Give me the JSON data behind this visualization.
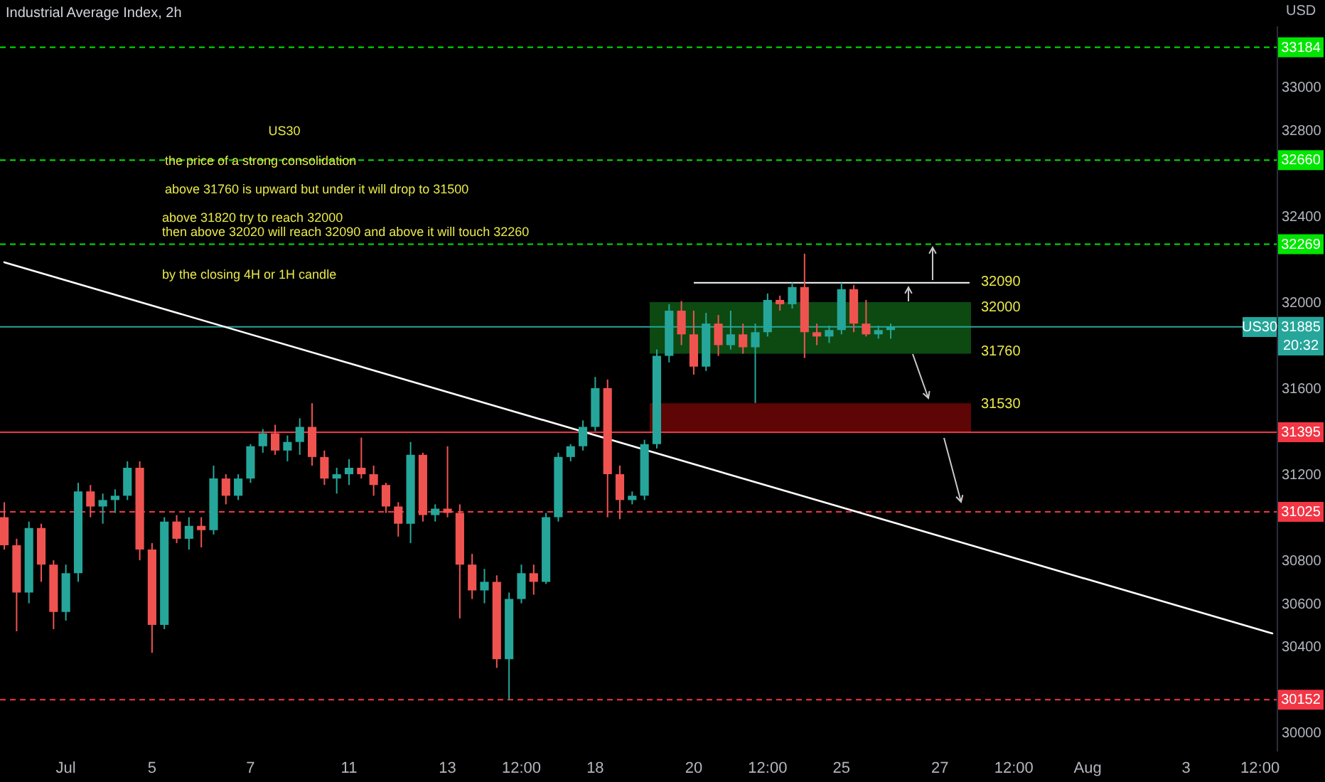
{
  "chart_data": {
    "type": "candlestick",
    "title": "Industrial Average Index, 2h",
    "ylabel": "USD",
    "categories": [
      null,
      null,
      null,
      null,
      null,
      "Jul",
      null,
      null,
      null,
      null,
      null,
      null,
      "5",
      null,
      null,
      null,
      null,
      null,
      null,
      null,
      "7",
      null,
      null,
      null,
      null,
      null,
      null,
      null,
      "11",
      null,
      null,
      null,
      null,
      null,
      null,
      null,
      "13",
      null,
      null,
      null,
      null,
      null,
      "12:00",
      null,
      null,
      null,
      null,
      null,
      "18",
      null,
      null,
      null,
      null,
      null,
      null,
      null,
      "20",
      null,
      null,
      null,
      null,
      null,
      "12:00",
      null,
      null,
      null,
      null,
      null,
      "25",
      null,
      null,
      null,
      null,
      null,
      null,
      null,
      "27",
      null,
      null,
      null,
      null,
      null,
      "12:00",
      null,
      null,
      null,
      null,
      null,
      "Aug",
      null,
      null,
      null,
      null,
      null,
      null,
      null,
      "3",
      null,
      null,
      null,
      null,
      null,
      "12:00",
      null
    ],
    "ohlc": [
      [
        31000,
        31070,
        30850,
        30870
      ],
      [
        30870,
        30900,
        30470,
        30650
      ],
      [
        30650,
        30980,
        30600,
        30950
      ],
      [
        30950,
        30970,
        30700,
        30780
      ],
      [
        30780,
        30800,
        30480,
        30560
      ],
      [
        30560,
        30780,
        30520,
        30740
      ],
      [
        30740,
        31160,
        30700,
        31120
      ],
      [
        31120,
        31150,
        31000,
        31050
      ],
      [
        31050,
        31110,
        30970,
        31080
      ],
      [
        31080,
        31130,
        31020,
        31100
      ],
      [
        31100,
        31260,
        31080,
        31230
      ],
      [
        31230,
        31260,
        30800,
        30850
      ],
      [
        30850,
        30880,
        30370,
        30500
      ],
      [
        30500,
        31000,
        30480,
        30980
      ],
      [
        30980,
        31010,
        30880,
        30900
      ],
      [
        30900,
        31000,
        30850,
        30960
      ],
      [
        30960,
        31000,
        30860,
        30940
      ],
      [
        30940,
        31240,
        30920,
        31180
      ],
      [
        31180,
        31200,
        31060,
        31100
      ],
      [
        31100,
        31200,
        31080,
        31180
      ],
      [
        31180,
        31340,
        31160,
        31330
      ],
      [
        31330,
        31410,
        31300,
        31390
      ],
      [
        31390,
        31430,
        31290,
        31310
      ],
      [
        31310,
        31380,
        31260,
        31350
      ],
      [
        31350,
        31460,
        31290,
        31420
      ],
      [
        31420,
        31530,
        31240,
        31280
      ],
      [
        31280,
        31310,
        31150,
        31180
      ],
      [
        31180,
        31230,
        31110,
        31200
      ],
      [
        31200,
        31270,
        31150,
        31230
      ],
      [
        31230,
        31370,
        31180,
        31200
      ],
      [
        31200,
        31240,
        31100,
        31150
      ],
      [
        31150,
        31160,
        31020,
        31050
      ],
      [
        31050,
        31070,
        30910,
        30970
      ],
      [
        30970,
        31350,
        30880,
        31290
      ],
      [
        31290,
        31300,
        30980,
        31010
      ],
      [
        31010,
        31060,
        30980,
        31040
      ],
      [
        31040,
        31330,
        31000,
        31020
      ],
      [
        31020,
        31060,
        30530,
        30780
      ],
      [
        30780,
        30830,
        30620,
        30660
      ],
      [
        30660,
        30760,
        30600,
        30700
      ],
      [
        30700,
        30730,
        30300,
        30340
      ],
      [
        30340,
        30650,
        30153,
        30620
      ],
      [
        30620,
        30780,
        30600,
        30740
      ],
      [
        30740,
        30780,
        30640,
        30700
      ],
      [
        30700,
        31020,
        30690,
        31000
      ],
      [
        31000,
        31300,
        30980,
        31280
      ],
      [
        31280,
        31340,
        31260,
        31330
      ],
      [
        31330,
        31450,
        31310,
        31420
      ],
      [
        31420,
        31652,
        31400,
        31600
      ],
      [
        31600,
        31640,
        31000,
        31200
      ],
      [
        31200,
        31240,
        30991,
        31080
      ],
      [
        31080,
        31120,
        31060,
        31100
      ],
      [
        31100,
        31360,
        31080,
        31340
      ],
      [
        31340,
        31780,
        31320,
        31750
      ],
      [
        31750,
        31990,
        31720,
        31960
      ],
      [
        31960,
        32005,
        31800,
        31850
      ],
      [
        31850,
        31960,
        31663,
        31700
      ],
      [
        31700,
        31950,
        31680,
        31900
      ],
      [
        31900,
        31940,
        31750,
        31800
      ],
      [
        31800,
        31960,
        31780,
        31850
      ],
      [
        31850,
        31900,
        31760,
        31790
      ],
      [
        31790,
        31900,
        31531,
        31860
      ],
      [
        31860,
        32040,
        31840,
        32010
      ],
      [
        32010,
        32030,
        31960,
        31990
      ],
      [
        31990,
        32090,
        31970,
        32070
      ],
      [
        32070,
        32225,
        31740,
        31860
      ],
      [
        31860,
        31900,
        31800,
        31840
      ],
      [
        31840,
        31890,
        31810,
        31870
      ],
      [
        31870,
        32090,
        31850,
        32060
      ],
      [
        32060,
        32080,
        31860,
        31900
      ],
      [
        31900,
        32010,
        31840,
        31850
      ],
      [
        31850,
        31890,
        31830,
        31870
      ],
      [
        31870,
        31900,
        31830,
        31885
      ],
      null,
      null,
      null,
      null,
      null,
      null,
      null,
      null,
      null,
      null,
      null,
      null,
      null,
      null,
      null,
      null,
      null,
      null,
      null,
      null,
      null,
      null,
      null,
      null,
      null,
      null,
      null,
      null,
      null,
      null,
      null
    ],
    "colors": [
      "#ef5350",
      "#ef5350",
      "#26a69a",
      "#ef5350",
      "#ef5350",
      "#26a69a",
      "#26a69a",
      "#ef5350",
      "#26a69a",
      "#26a69a",
      "#26a69a",
      "#ef5350",
      "#ef5350",
      "#26a69a",
      "#ef5350",
      "#26a69a",
      "#ef5350",
      "#26a69a",
      "#ef5350",
      "#26a69a",
      "#26a69a",
      "#26a69a",
      "#ef5350",
      "#26a69a",
      "#26a69a",
      "#ef5350",
      "#ef5350",
      "#26a69a",
      "#26a69a",
      "#ef5350",
      "#ef5350",
      "#ef5350",
      "#ef5350",
      "#26a69a",
      "#ef5350",
      "#26a69a",
      "#ef5350",
      "#ef5350",
      "#ef5350",
      "#26a69a",
      "#ef5350",
      "#26a69a",
      "#26a69a",
      "#ef5350",
      "#26a69a",
      "#26a69a",
      "#26a69a",
      "#26a69a",
      "#26a69a",
      "#ef5350",
      "#ef5350",
      "#26a69a",
      "#26a69a",
      "#26a69a",
      "#26a69a",
      "#ef5350",
      "#ef5350",
      "#26a69a",
      "#ef5350",
      "#26a69a",
      "#ef5350",
      "#26a69a",
      "#26a69a",
      "#ef5350",
      "#26a69a",
      "#ef5350",
      "#ef5350",
      "#26a69a",
      "#26a69a",
      "#ef5350",
      "#ef5350",
      "#26a69a",
      "#26a69a",
      null,
      null,
      null,
      null,
      null,
      null,
      null,
      null,
      null,
      null,
      null,
      null,
      null,
      null,
      null,
      null,
      null,
      null,
      null,
      null,
      null,
      null,
      null,
      null,
      null,
      null,
      null,
      null,
      null,
      null,
      null
    ],
    "series": [
      {
        "type": "line",
        "color": "#ffffff",
        "values": [
          32185,
          null,
          null,
          null,
          null,
          null,
          null,
          null,
          null,
          null,
          null,
          null,
          null,
          null,
          null,
          null,
          null,
          null,
          null,
          null,
          null,
          null,
          null,
          null,
          null,
          null,
          null,
          null,
          null,
          null,
          null,
          null,
          null,
          null,
          null,
          null,
          null,
          null,
          null,
          null,
          null,
          null,
          null,
          null,
          null,
          null,
          null,
          null,
          null,
          null,
          null,
          null,
          null,
          null,
          null,
          null,
          null,
          null,
          null,
          null,
          null,
          null,
          null,
          null,
          null,
          null,
          null,
          null,
          null,
          null,
          null,
          null,
          null,
          null,
          null,
          null,
          null,
          null,
          null,
          null,
          null,
          null,
          null,
          null,
          null,
          null,
          null,
          null,
          null,
          null,
          null,
          null,
          null,
          null,
          null,
          null,
          null,
          null,
          null,
          null,
          null,
          null,
          null,
          30460
        ]
      }
    ],
    "ylim": [
      29915,
      33285
    ],
    "yticks": [
      30000,
      30400,
      30600,
      30800,
      31200,
      31600,
      32000,
      32400,
      32800,
      33000
    ],
    "ref_lines": [
      {
        "axis": "y",
        "value": 33184,
        "label": "33184",
        "color": "#00e600",
        "line_style": "dashed"
      },
      {
        "axis": "y",
        "value": 32660,
        "label": "32660",
        "color": "#00e600",
        "line_style": "dashed"
      },
      {
        "axis": "y",
        "value": 32269,
        "label": "32269",
        "color": "#00e600",
        "line_style": "dashed"
      },
      {
        "axis": "y",
        "value": 32090,
        "color": "#ffffff",
        "line_style": "solid"
      },
      {
        "axis": "y",
        "value": 31885,
        "label": "31885",
        "color": "#26a69a",
        "line_style": "solid"
      },
      {
        "axis": "y",
        "value": 31395,
        "label": "31395",
        "color": "#f23645",
        "line_style": "solid"
      },
      {
        "axis": "y",
        "value": 31025,
        "label": "31025",
        "color": "#f23645",
        "line_style": "dashed"
      },
      {
        "axis": "y",
        "value": 30152,
        "label": "30152",
        "color": "#f23645",
        "line_style": "dashed"
      }
    ],
    "bands": [
      {
        "axis": "y",
        "from": 31760,
        "to": 32000,
        "color": "#0c4a12"
      },
      {
        "axis": "y",
        "from": 31395,
        "to": 31530,
        "color": "#5e0505"
      }
    ],
    "annotations": [
      "US30",
      "the price of a strong consolidation",
      "above 31760 is upward but under it will drop to 31500",
      "above 31820 try to reach 32000",
      "then above 32020 will reach 32090 and above it will touch 32260",
      "by the closing 4H or 1H candle",
      "20:32",
      "US30",
      "32090",
      "32000",
      "31760",
      "31530"
    ]
  }
}
